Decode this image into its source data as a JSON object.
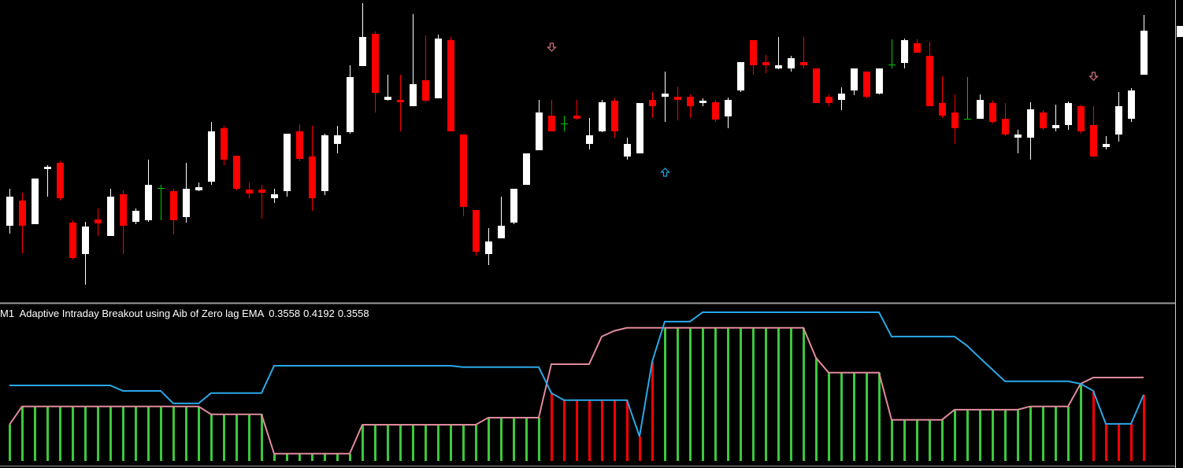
{
  "chart_data": [
    {
      "type": "candlestick",
      "categories": [
        null,
        null,
        null,
        null,
        null,
        null,
        null,
        null,
        null,
        null,
        null,
        null,
        null,
        null,
        null,
        null,
        null,
        null,
        null,
        null,
        null,
        null,
        null,
        null,
        null,
        null,
        null,
        null,
        null,
        null,
        null,
        null,
        null,
        null,
        null,
        null,
        null,
        null,
        null,
        null,
        null,
        null,
        null,
        null,
        null,
        null,
        null,
        null,
        null,
        null,
        null,
        null,
        null,
        null,
        null,
        null,
        null,
        null,
        null,
        null,
        null,
        null,
        null,
        null,
        null,
        null,
        null,
        null,
        null,
        null,
        null,
        null,
        null,
        null,
        null,
        null,
        null,
        null,
        null,
        null,
        null,
        null,
        null,
        null,
        null,
        null,
        null,
        null,
        null,
        null,
        null
      ],
      "ylim": [
        0,
        385
      ],
      "open": [
        98,
        130,
        100,
        170,
        178,
        102,
        62,
        106,
        85,
        138,
        103,
        105,
        146,
        142,
        109,
        143,
        154,
        222,
        187,
        144,
        144,
        133,
        142,
        218,
        186,
        142,
        202,
        217,
        301,
        342,
        258,
        258,
        250,
        283,
        260,
        334,
        214,
        118,
        62,
        82,
        102,
        150,
        194,
        238,
        228,
        238,
        202,
        218,
        257,
        186,
        190,
        258,
        262,
        262,
        262,
        254,
        255,
        237,
        270,
        334,
        306,
        298,
        298,
        306,
        298,
        262,
        258,
        270,
        294,
        266,
        303,
        305,
        330,
        314,
        254,
        242,
        234,
        234,
        254,
        234,
        210,
        210,
        242,
        222,
        226,
        250,
        226,
        198,
        214,
        234,
        290
      ],
      "high": [
        145,
        140,
        158,
        175,
        180,
        105,
        103,
        120,
        145,
        143,
        120,
        182,
        150,
        145,
        178,
        153,
        230,
        225,
        187,
        153,
        150,
        145,
        215,
        227,
        225,
        215,
        225,
        302,
        381,
        345,
        290,
        290,
        367,
        340,
        341,
        338,
        214,
        118,
        95,
        135,
        145,
        190,
        258,
        258,
        238,
        258,
        235,
        258,
        260,
        210,
        254,
        268,
        294,
        275,
        265,
        260,
        258,
        261,
        306,
        334,
        315,
        338,
        314,
        338,
        298,
        265,
        274,
        298,
        294,
        298,
        335,
        336,
        335,
        332,
        288,
        265,
        287,
        265,
        257,
        254,
        220,
        255,
        245,
        252,
        256,
        252,
        250,
        212,
        268,
        273,
        366
      ],
      "low": [
        88,
        63,
        100,
        135,
        130,
        55,
        23,
        85,
        85,
        62,
        100,
        103,
        105,
        87,
        102,
        142,
        150,
        175,
        143,
        133,
        107,
        127,
        135,
        180,
        117,
        137,
        190,
        215,
        301,
        242,
        257,
        218,
        250,
        255,
        260,
        218,
        110,
        60,
        48,
        82,
        100,
        150,
        194,
        218,
        218,
        233,
        195,
        217,
        210,
        182,
        190,
        235,
        230,
        232,
        235,
        250,
        230,
        222,
        268,
        290,
        292,
        297,
        294,
        298,
        254,
        250,
        245,
        264,
        260,
        265,
        298,
        298,
        318,
        250,
        235,
        202,
        234,
        234,
        228,
        212,
        190,
        182,
        220,
        218,
        220,
        215,
        185,
        195,
        205,
        230,
        290
      ],
      "close": [
        135,
        98,
        158,
        173,
        133,
        57,
        97,
        101,
        135,
        98,
        117,
        150,
        146,
        105,
        145,
        147,
        218,
        182,
        145,
        139,
        140,
        138,
        215,
        183,
        133,
        213,
        213,
        287,
        338,
        267,
        262,
        255,
        278,
        257,
        336,
        218,
        122,
        65,
        78,
        98,
        145,
        190,
        242,
        218,
        228,
        234,
        213,
        255,
        218,
        202,
        254,
        250,
        266,
        258,
        250,
        257,
        233,
        258,
        306,
        302,
        302,
        302,
        311,
        302,
        254,
        254,
        266,
        298,
        262,
        298,
        303,
        334,
        318,
        250,
        238,
        222,
        234,
        258,
        230,
        214,
        214,
        246,
        222,
        226,
        254,
        218,
        186,
        202,
        250,
        270,
        346
      ],
      "up_color": "#ffffff",
      "down_color": "#ff0000",
      "doji_color": "#00c800",
      "series": [
        {
          "color": "#d0707e",
          "marker": "down",
          "values": [
            null,
            null,
            null,
            null,
            null,
            null,
            null,
            null,
            null,
            null,
            null,
            null,
            null,
            null,
            null,
            null,
            null,
            null,
            null,
            null,
            null,
            null,
            null,
            null,
            null,
            null,
            null,
            null,
            null,
            null,
            null,
            null,
            null,
            null,
            null,
            null,
            null,
            null,
            null,
            null,
            null,
            null,
            null,
            325,
            null,
            null,
            null,
            null,
            null,
            null,
            null,
            null,
            null,
            null,
            null,
            null,
            null,
            null,
            null,
            null,
            null,
            null,
            null,
            null,
            null,
            null,
            null,
            null,
            null,
            null,
            null,
            null,
            null,
            null,
            null,
            null,
            null,
            null,
            null,
            null,
            null,
            null,
            null,
            null,
            null,
            null,
            288,
            null,
            null,
            null,
            null
          ]
        },
        {
          "color": "#1aa6e0",
          "marker": "up",
          "values": [
            null,
            null,
            null,
            null,
            null,
            null,
            null,
            null,
            null,
            null,
            null,
            null,
            null,
            null,
            null,
            null,
            null,
            null,
            null,
            null,
            null,
            null,
            null,
            null,
            null,
            null,
            null,
            null,
            null,
            null,
            null,
            null,
            null,
            null,
            null,
            null,
            null,
            null,
            null,
            null,
            null,
            null,
            null,
            null,
            null,
            null,
            null,
            null,
            null,
            null,
            null,
            null,
            166,
            null,
            null,
            null,
            null,
            null,
            null,
            null,
            null,
            null,
            null,
            null,
            null,
            null,
            null,
            null,
            null,
            null,
            null,
            null,
            null,
            null,
            null,
            null,
            null,
            null,
            null,
            null,
            null,
            null,
            null,
            null,
            null,
            null,
            null,
            null,
            null,
            null,
            null
          ]
        }
      ]
    },
    {
      "type": "indicator",
      "label": "M1  Adaptive Intraday Breakout using Aib of Zero lag EMA",
      "categories": [
        null,
        null,
        null,
        null,
        null,
        null,
        null,
        null,
        null,
        null,
        null,
        null,
        null,
        null,
        null,
        null,
        null,
        null,
        null,
        null,
        null,
        null,
        null,
        null,
        null,
        null,
        null,
        null,
        null,
        null,
        null,
        null,
        null,
        null,
        null,
        null,
        null,
        null,
        null,
        null,
        null,
        null,
        null,
        null,
        null,
        null,
        null,
        null,
        null,
        null,
        null,
        null,
        null,
        null,
        null,
        null,
        null,
        null,
        null,
        null,
        null,
        null,
        null,
        null,
        null,
        null,
        null,
        null,
        null,
        null,
        null,
        null,
        null,
        null,
        null,
        null,
        null,
        null,
        null,
        null,
        null,
        null,
        null,
        null,
        null,
        null,
        null,
        null,
        null,
        null,
        null
      ],
      "ylim": [
        0.096,
        0.684
      ],
      "series": [
        {
          "kind": "bar",
          "color": "#3cc83c",
          "down_color": "#ff0000",
          "values": [
            0.246,
            0.313,
            0.313,
            0.313,
            0.313,
            0.313,
            0.313,
            0.313,
            0.313,
            0.313,
            0.313,
            0.313,
            0.313,
            0.313,
            0.313,
            0.313,
            0.284,
            0.284,
            0.284,
            0.284,
            0.284,
            0.14,
            0.14,
            0.14,
            0.14,
            0.14,
            0.14,
            0.14,
            0.246,
            0.246,
            0.246,
            0.246,
            0.246,
            0.246,
            0.246,
            0.246,
            0.246,
            0.246,
            0.272,
            0.272,
            0.272,
            0.272,
            0.272,
            0.362,
            0.336,
            0.336,
            0.336,
            0.336,
            0.336,
            0.336,
            0.203,
            0.477,
            0.601,
            0.601,
            0.601,
            0.601,
            0.601,
            0.601,
            0.601,
            0.601,
            0.601,
            0.601,
            0.601,
            0.601,
            0.491,
            0.437,
            0.437,
            0.437,
            0.437,
            0.437,
            0.264,
            0.264,
            0.264,
            0.264,
            0.264,
            0.301,
            0.301,
            0.301,
            0.301,
            0.301,
            0.301,
            0.313,
            0.313,
            0.313,
            0.313,
            0.396,
            0.37,
            0.249,
            0.249,
            0.249,
            0.3558
          ]
        },
        {
          "kind": "line",
          "color": "#e08a9c",
          "values": [
            0.246,
            0.313,
            0.313,
            0.313,
            0.313,
            0.313,
            0.313,
            0.313,
            0.313,
            0.313,
            0.313,
            0.313,
            0.313,
            0.313,
            0.313,
            0.313,
            0.284,
            0.284,
            0.284,
            0.284,
            0.284,
            0.14,
            0.14,
            0.14,
            0.14,
            0.14,
            0.14,
            0.14,
            0.246,
            0.246,
            0.246,
            0.246,
            0.246,
            0.246,
            0.246,
            0.246,
            0.246,
            0.246,
            0.272,
            0.272,
            0.272,
            0.272,
            0.272,
            0.468,
            0.468,
            0.468,
            0.468,
            0.569,
            0.59,
            0.601,
            0.601,
            0.601,
            0.601,
            0.601,
            0.601,
            0.601,
            0.601,
            0.601,
            0.601,
            0.601,
            0.601,
            0.601,
            0.601,
            0.601,
            0.491,
            0.437,
            0.437,
            0.437,
            0.437,
            0.437,
            0.264,
            0.264,
            0.264,
            0.264,
            0.264,
            0.301,
            0.301,
            0.301,
            0.301,
            0.301,
            0.301,
            0.313,
            0.313,
            0.313,
            0.313,
            0.396,
            0.419,
            0.419,
            0.419,
            0.419,
            0.4192
          ]
        },
        {
          "kind": "line",
          "color": "#2aa8e8",
          "values": [
            0.39,
            0.39,
            0.39,
            0.39,
            0.39,
            0.39,
            0.39,
            0.39,
            0.39,
            0.37,
            0.37,
            0.37,
            0.37,
            0.324,
            0.324,
            0.324,
            0.362,
            0.362,
            0.362,
            0.362,
            0.362,
            0.462,
            0.462,
            0.462,
            0.462,
            0.462,
            0.462,
            0.462,
            0.462,
            0.462,
            0.462,
            0.462,
            0.462,
            0.462,
            0.462,
            0.462,
            0.457,
            0.457,
            0.457,
            0.457,
            0.457,
            0.457,
            0.457,
            0.362,
            0.336,
            0.336,
            0.336,
            0.336,
            0.336,
            0.336,
            0.203,
            0.477,
            0.624,
            0.624,
            0.624,
            0.658,
            0.658,
            0.658,
            0.658,
            0.658,
            0.658,
            0.658,
            0.658,
            0.658,
            0.658,
            0.658,
            0.658,
            0.658,
            0.658,
            0.658,
            0.569,
            0.569,
            0.569,
            0.569,
            0.569,
            0.569,
            0.535,
            0.491,
            0.448,
            0.405,
            0.405,
            0.405,
            0.405,
            0.405,
            0.405,
            0.396,
            0.37,
            0.249,
            0.249,
            0.249,
            0.3558
          ]
        }
      ]
    }
  ]
}
